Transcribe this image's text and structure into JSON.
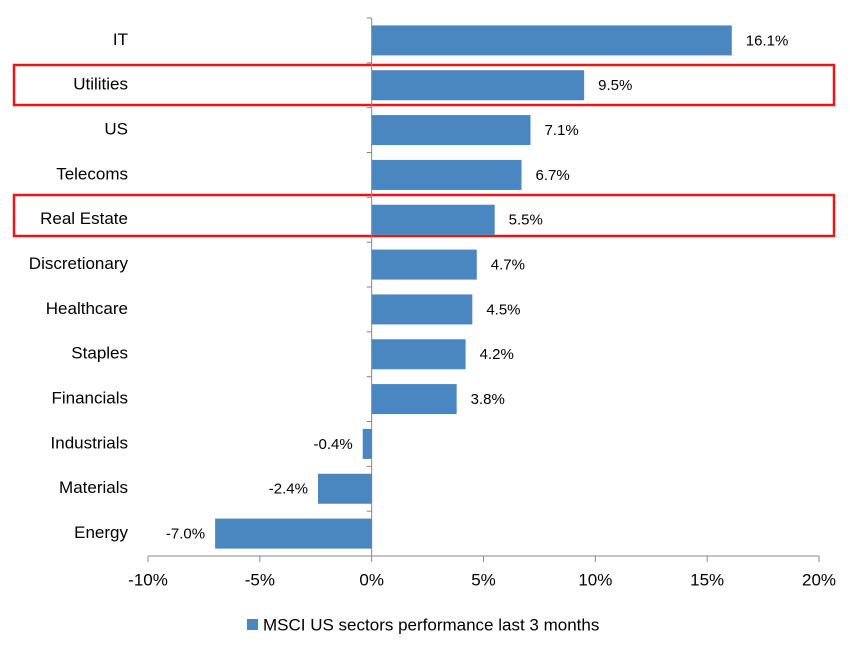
{
  "chart_data": {
    "type": "bar",
    "orientation": "horizontal",
    "categories": [
      "IT",
      "Utilities",
      "US",
      "Telecoms",
      "Real Estate",
      "Discretionary",
      "Healthcare",
      "Staples",
      "Financials",
      "Industrials",
      "Materials",
      "Energy"
    ],
    "series": [
      {
        "name": "MSCI US sectors performance last 3 months",
        "color": "#4a86c0",
        "values": [
          16.1,
          9.5,
          7.1,
          6.7,
          5.5,
          4.7,
          4.5,
          4.2,
          3.8,
          -0.4,
          -2.4,
          -7.0
        ],
        "value_labels": [
          "16.1%",
          "9.5%",
          "7.1%",
          "6.7%",
          "5.5%",
          "4.7%",
          "4.5%",
          "4.2%",
          "3.8%",
          "-0.4%",
          "-2.4%",
          "-7.0%"
        ]
      }
    ],
    "xlim": [
      -10,
      20
    ],
    "xticks": [
      {
        "value": -10,
        "label": "-10%"
      },
      {
        "value": -5,
        "label": "-5%"
      },
      {
        "value": 0,
        "label": "0%"
      },
      {
        "value": 5,
        "label": "5%"
      },
      {
        "value": 10,
        "label": "10%"
      },
      {
        "value": 15,
        "label": "15%"
      },
      {
        "value": 20,
        "label": "20%"
      }
    ],
    "legend": "bottom"
  }
}
